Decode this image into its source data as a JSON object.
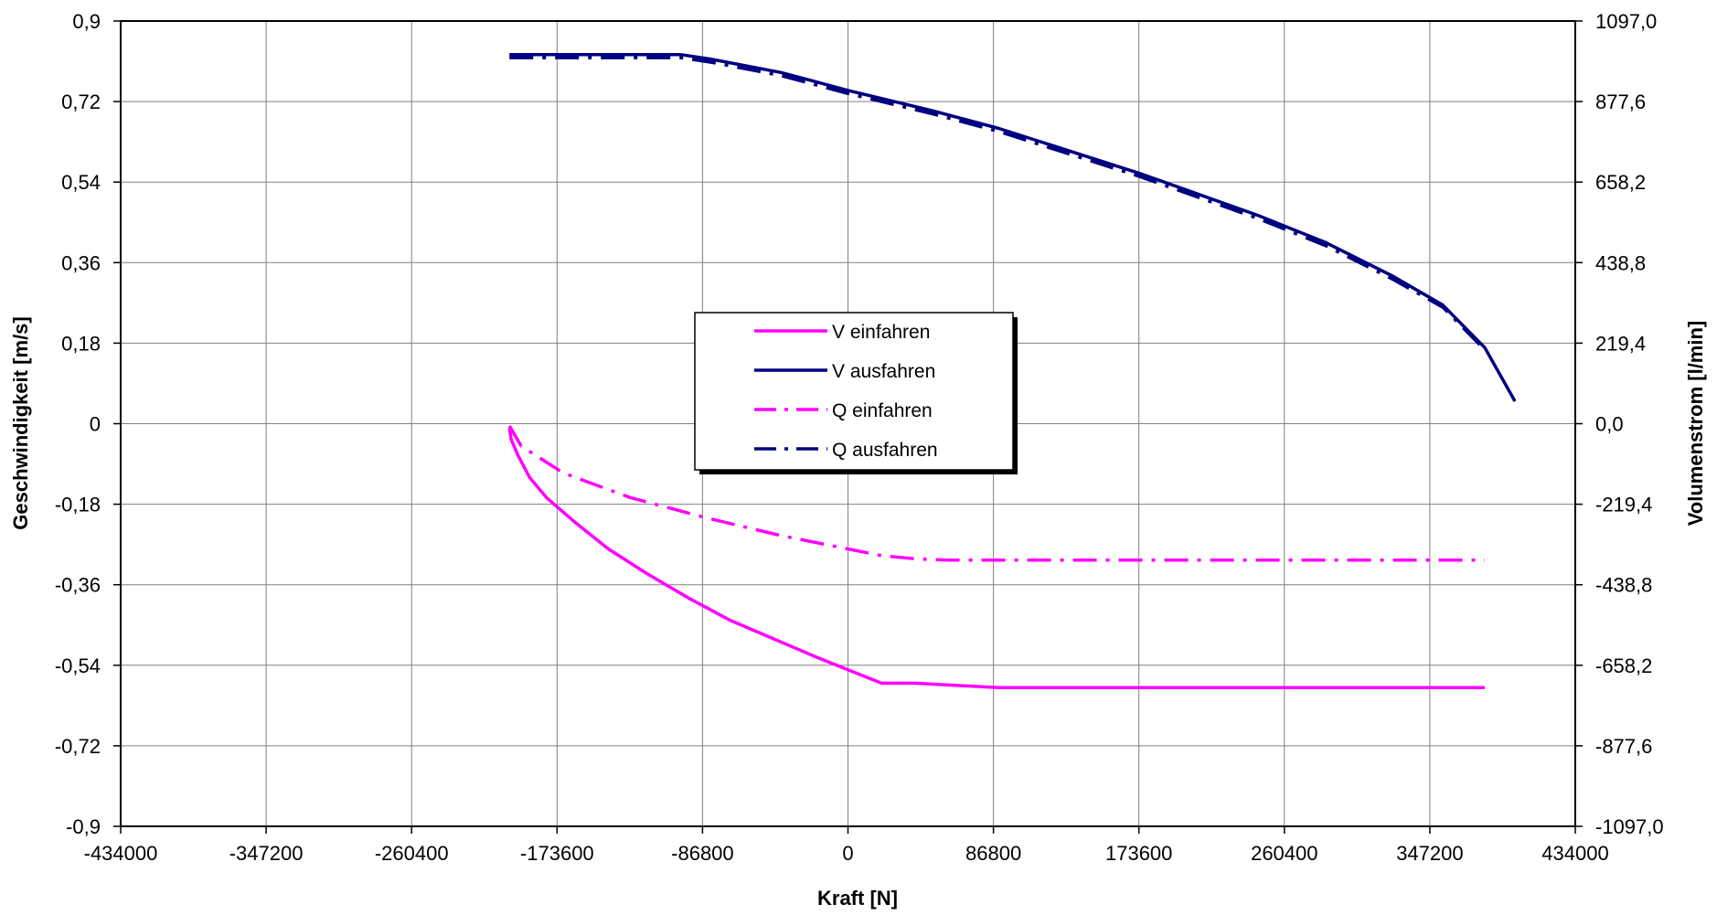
{
  "chart_data": {
    "type": "line",
    "title": "",
    "xlabel": "Kraft [N]",
    "ylabel": "Geschwindigkeit [m/s]",
    "y2label": "Volumenstrom [l/min]",
    "xlim": [
      -434000,
      434000
    ],
    "ylim": [
      -0.9,
      0.9
    ],
    "y2lim": [
      -1097.0,
      1097.0
    ],
    "grid": true,
    "legend_position": "center",
    "x_ticks": [
      "-434000",
      "-347200",
      "-260400",
      "-173600",
      "-86800",
      "0",
      "86800",
      "173600",
      "260400",
      "347200",
      "434000"
    ],
    "y_ticks": [
      "-0,9",
      "-0,72",
      "-0,54",
      "-0,36",
      "-0,18",
      "0",
      "0,18",
      "0,36",
      "0,54",
      "0,72",
      "0,9"
    ],
    "y2_ticks": [
      "-1097,0",
      "-877,6",
      "-658,2",
      "-438,8",
      "-219,4",
      "0,0",
      "219,4",
      "438,8",
      "658,2",
      "877,6",
      "1097,0"
    ],
    "series": [
      {
        "name": "V einfahren",
        "axis": "left",
        "color": "#ff00ff",
        "dash": "solid",
        "points": [
          [
            -202000,
            -0.01
          ],
          [
            -201000,
            -0.035
          ],
          [
            -197000,
            -0.07
          ],
          [
            -190000,
            -0.12
          ],
          [
            -180000,
            -0.165
          ],
          [
            -163000,
            -0.22
          ],
          [
            -143000,
            -0.28
          ],
          [
            -120000,
            -0.335
          ],
          [
            -95000,
            -0.39
          ],
          [
            -70000,
            -0.44
          ],
          [
            -45000,
            -0.48
          ],
          [
            -20000,
            -0.52
          ],
          [
            0,
            -0.55
          ],
          [
            20000,
            -0.58
          ],
          [
            40000,
            -0.58
          ],
          [
            90000,
            -0.59
          ],
          [
            380000,
            -0.59
          ]
        ]
      },
      {
        "name": "V ausfahren",
        "axis": "left",
        "color": "#000080",
        "dash": "solid",
        "points": [
          [
            -202000,
            0.825
          ],
          [
            -100000,
            0.825
          ],
          [
            -82000,
            0.815
          ],
          [
            -40000,
            0.785
          ],
          [
            0,
            0.745
          ],
          [
            50000,
            0.7
          ],
          [
            90000,
            0.66
          ],
          [
            173600,
            0.56
          ],
          [
            245000,
            0.465
          ],
          [
            285000,
            0.405
          ],
          [
            325000,
            0.33
          ],
          [
            355000,
            0.265
          ],
          [
            380000,
            0.17
          ],
          [
            398000,
            0.05
          ]
        ]
      },
      {
        "name": "Q einfahren",
        "axis": "left",
        "color": "#ff00ff",
        "dash": "dashdot",
        "points": [
          [
            -202000,
            -0.005
          ],
          [
            -195000,
            -0.05
          ],
          [
            -170000,
            -0.11
          ],
          [
            -130000,
            -0.165
          ],
          [
            -85000,
            -0.21
          ],
          [
            -40000,
            -0.25
          ],
          [
            0,
            -0.28
          ],
          [
            20000,
            -0.295
          ],
          [
            40000,
            -0.302
          ],
          [
            60000,
            -0.305
          ],
          [
            380000,
            -0.305
          ]
        ]
      },
      {
        "name": "Q ausfahren",
        "axis": "left",
        "color": "#000080",
        "dash": "dashdot",
        "points": [
          [
            -202000,
            0.818
          ],
          [
            -100000,
            0.818
          ],
          [
            -82000,
            0.808
          ],
          [
            -40000,
            0.778
          ],
          [
            0,
            0.738
          ],
          [
            50000,
            0.693
          ],
          [
            90000,
            0.653
          ],
          [
            173600,
            0.553
          ],
          [
            245000,
            0.458
          ],
          [
            285000,
            0.398
          ],
          [
            325000,
            0.323
          ],
          [
            355000,
            0.26
          ],
          [
            380000,
            0.165
          ]
        ]
      }
    ]
  }
}
